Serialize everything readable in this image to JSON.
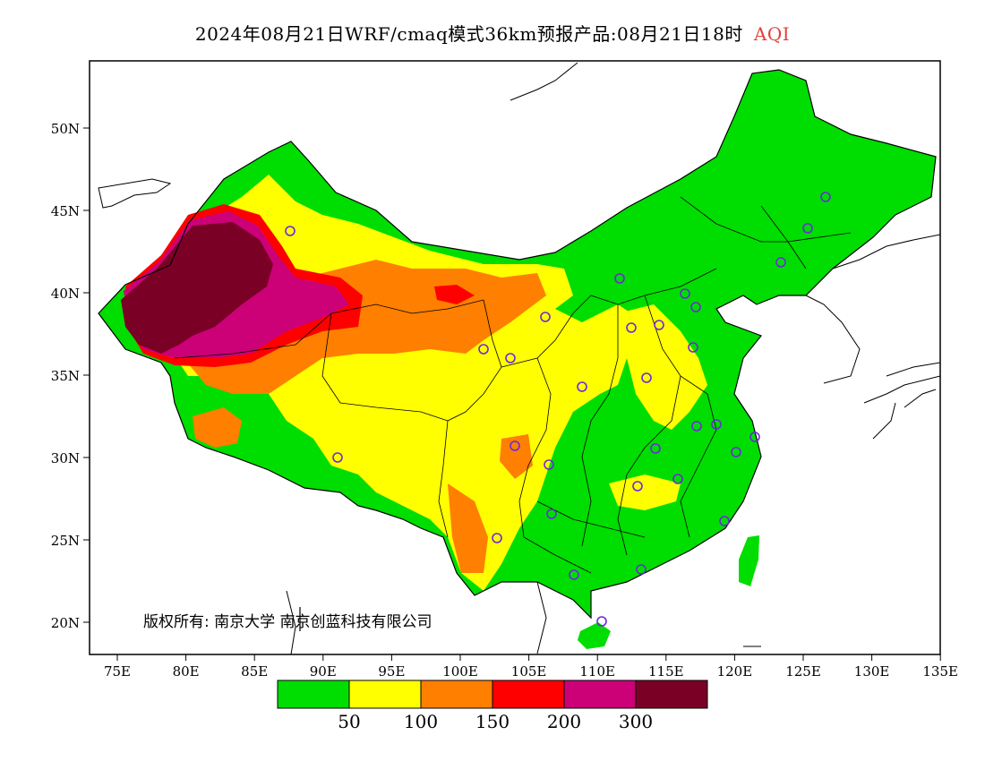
{
  "title": {
    "main": "2024年08月21日WRF/cmaq模式36km预报产品:08月21日18时",
    "variable": "AQI"
  },
  "axes": {
    "x_ticks": [
      "75E",
      "80E",
      "85E",
      "90E",
      "95E",
      "100E",
      "105E",
      "110E",
      "115E",
      "120E",
      "125E",
      "130E",
      "135E"
    ],
    "y_ticks": [
      "50N",
      "45N",
      "40N",
      "35N",
      "30N",
      "25N",
      "20N"
    ]
  },
  "legend": {
    "colors": [
      "#00dd00",
      "#ffff00",
      "#ff7f00",
      "#ff0000",
      "#cc0077",
      "#7a0026"
    ],
    "labels": [
      "50",
      "100",
      "150",
      "200",
      "300"
    ]
  },
  "copyright": "版权所有: 南京大学 南京创蓝科技有限公司"
}
